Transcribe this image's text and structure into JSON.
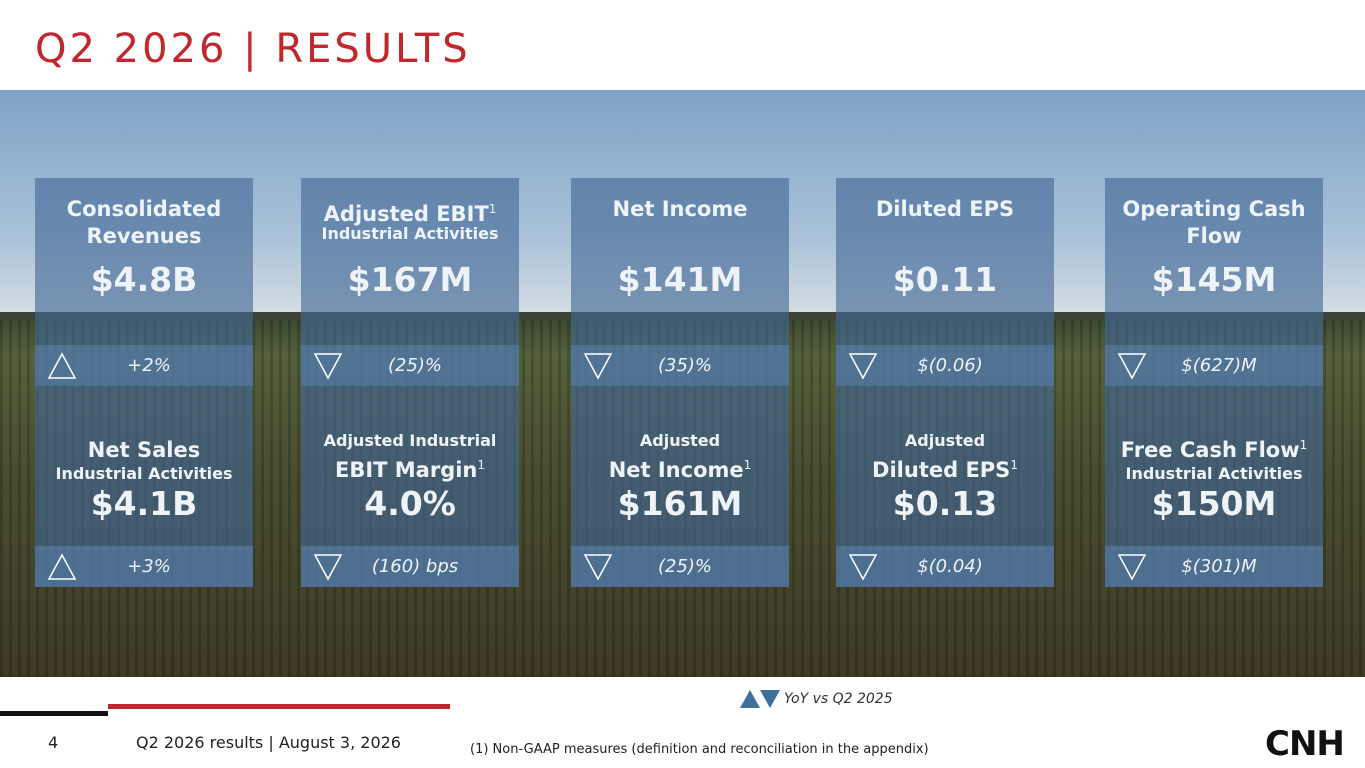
{
  "header": {
    "title": "Q2 2026 | RESULTS"
  },
  "cards": [
    {
      "top": {
        "title": "Consolidated Revenues",
        "value": "$4.8B",
        "change": "+2%",
        "direction": "up"
      },
      "bottom": {
        "title": "Net Sales",
        "subtitle": "Industrial Activities",
        "value": "$4.1B",
        "change": "+3%",
        "direction": "up"
      }
    },
    {
      "top": {
        "title": "Adjusted EBIT",
        "note": "1",
        "subtitle": "Industrial Activities",
        "value": "$167M",
        "change": "(25)%",
        "direction": "down"
      },
      "bottom": {
        "pre": "Adjusted Industrial",
        "title": "EBIT Margin",
        "note": "1",
        "value": "4.0%",
        "change": "(160) bps",
        "direction": "down"
      }
    },
    {
      "top": {
        "title": "Net Income",
        "value": "$141M",
        "change": "(35)%",
        "direction": "down"
      },
      "bottom": {
        "pre": "Adjusted",
        "title": "Net Income",
        "note": "1",
        "value": "$161M",
        "change": "(25)%",
        "direction": "down"
      }
    },
    {
      "top": {
        "title": "Diluted EPS",
        "value": "$0.11",
        "change": "$(0.06)",
        "direction": "down"
      },
      "bottom": {
        "pre": "Adjusted",
        "title": "Diluted EPS",
        "note": "1",
        "value": "$0.13",
        "change": "$(0.04)",
        "direction": "down"
      }
    },
    {
      "top": {
        "title": "Operating Cash Flow",
        "value": "$145M",
        "change": "$(627)M",
        "direction": "down"
      },
      "bottom": {
        "title": "Free Cash Flow",
        "note": "1",
        "subtitle": "Industrial Activities",
        "value": "$150M",
        "change": "$(301)M",
        "direction": "down"
      }
    }
  ],
  "legend": "YoY vs Q2 2025",
  "footer": {
    "page": "4",
    "text": "Q2 2026 results | August 3, 2026",
    "note": "(1) Non-GAAP measures (definition and reconciliation in the appendix)",
    "logo": "CNH"
  }
}
